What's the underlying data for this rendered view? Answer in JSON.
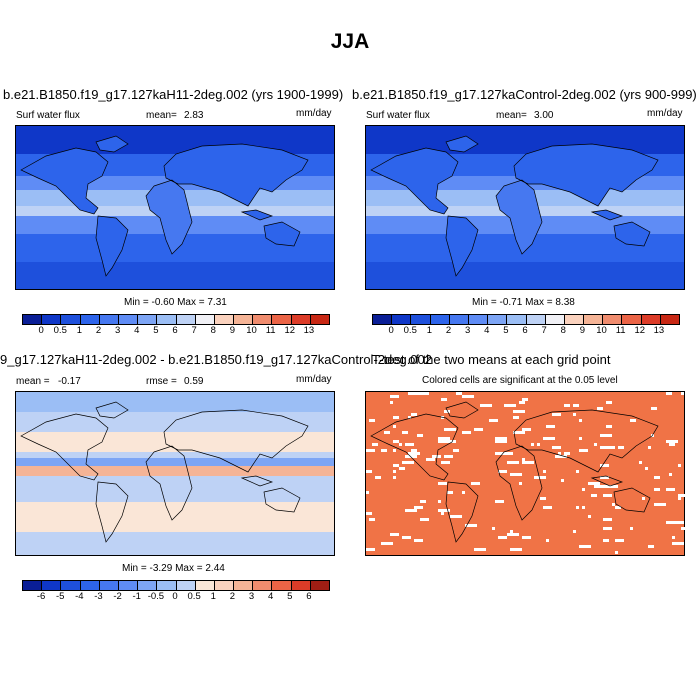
{
  "figure": {
    "title": "JJA"
  },
  "panels": [
    {
      "id": "case",
      "title": "b.e21.B1850.f19_g17.127kaH11-2deg.002 (yrs 1900-1999)",
      "variable": "Surf water flux",
      "stat_label": "mean=",
      "stat_value": "2.83",
      "units": "mm/day",
      "minmax_text": "Min =  -0.60 Max =  7.31"
    },
    {
      "id": "control",
      "title": "b.e21.B1850.f19_g17.127kaControl-2deg.002 (yrs 900-999)",
      "variable": "Surf water flux",
      "stat_label": "mean=",
      "stat_value": "3.00",
      "units": "mm/day",
      "minmax_text": "Min =  -0.71 Max =  8.38"
    },
    {
      "id": "difference",
      "title": "9_g17.127kaH11-2deg.002 - b.e21.B1850.f19_g17.127kaControl-2deg.002",
      "mean_label": "mean =",
      "mean_value": "-0.17",
      "rmse_label": "rmse =",
      "rmse_value": "0.59",
      "units": "mm/day",
      "minmax_text": "Min =  -3.29 Max =  2.44"
    },
    {
      "id": "significance",
      "title": "T-test of the two means at each grid point",
      "subtitle": "Colored cells are significant at the 0.05 level"
    }
  ],
  "colorbars": {
    "absolute": {
      "labels": [
        "0",
        "0.5",
        "1",
        "2",
        "3",
        "4",
        "5",
        "6",
        "7",
        "8",
        "9",
        "10",
        "11",
        "12",
        "13"
      ],
      "colors": [
        "#0a1e96",
        "#0f37c8",
        "#1e50dc",
        "#2d64eb",
        "#4678f0",
        "#5f8cf5",
        "#7da5f5",
        "#9bbef5",
        "#bed2f5",
        "#f0f0f5",
        "#fad2be",
        "#f5b496",
        "#f08c6e",
        "#eb6446",
        "#dc3c28",
        "#c82814"
      ]
    },
    "difference": {
      "labels": [
        "-6",
        "-5",
        "-4",
        "-3",
        "-2",
        "-1",
        "-0.5",
        "0",
        "0.5",
        "1",
        "2",
        "3",
        "4",
        "5",
        "6"
      ],
      "colors": [
        "#0a1e96",
        "#0f37c8",
        "#1e50dc",
        "#2d64eb",
        "#4678f0",
        "#5f8cf5",
        "#7da5f5",
        "#9bbef5",
        "#bed2f5",
        "#fae6d7",
        "#fad2be",
        "#f5b496",
        "#f08c6e",
        "#eb6446",
        "#dc3c28",
        "#a01e14"
      ]
    },
    "significance_color": "#f07346"
  }
}
